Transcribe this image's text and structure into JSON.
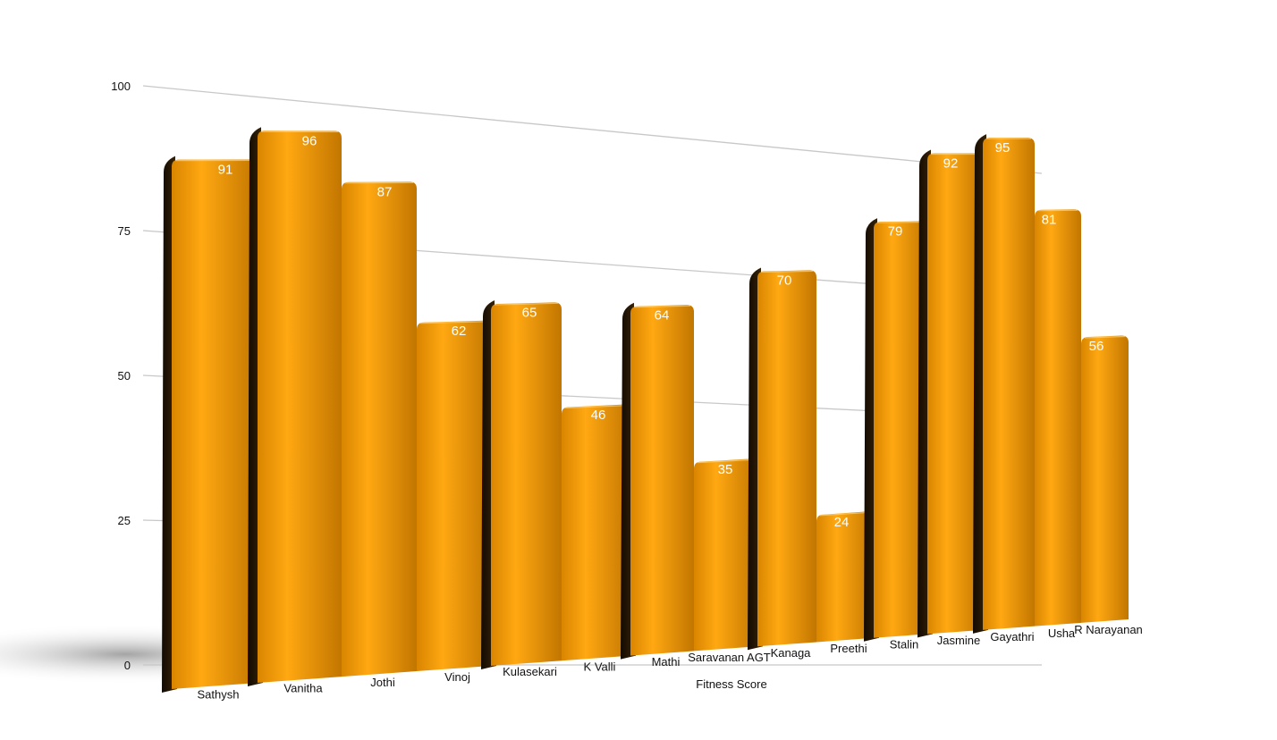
{
  "chart_data": {
    "type": "bar",
    "xlabel": "Fitness Score",
    "ylabel": "",
    "ylim": [
      0,
      100
    ],
    "yticks": [
      0,
      25,
      50,
      75,
      100
    ],
    "grid": true,
    "categories": [
      "Sathysh",
      "Vanitha",
      "Jothi",
      "Vinoj",
      "Kulasekari",
      "K Valli",
      "Mathi",
      "Saravanan AGT",
      "Kanaga",
      "Preethi",
      "Stalin",
      "Jasmine",
      "Gayathri",
      "Usha",
      "R Narayanan"
    ],
    "values": [
      91,
      96,
      87,
      62,
      65,
      46,
      64,
      35,
      70,
      24,
      79,
      92,
      95,
      81,
      56
    ],
    "colors": {
      "bar_front": "#f59d0a",
      "bar_front_dark": "#c27600",
      "bar_side": "#231507",
      "value_label": "#ffffff",
      "gridline": "#c8c8c8",
      "text": "#111111"
    }
  }
}
